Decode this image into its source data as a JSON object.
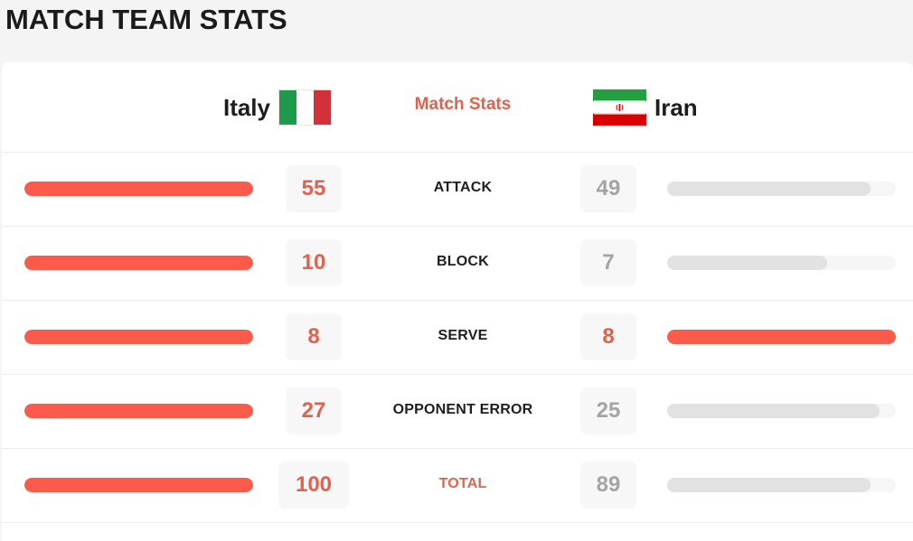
{
  "page": {
    "title": "MATCH TEAM STATS"
  },
  "header": {
    "home_team": "Italy",
    "center_title": "Match Stats",
    "away_team": "Iran"
  },
  "colors": {
    "leader": "#fa5b4a",
    "trailer": "#e2e2e2",
    "accent_text": "#e2614c",
    "muted_text": "#a4a4a4"
  },
  "stats": [
    {
      "label": "ATTACK",
      "home": "55",
      "away": "49",
      "home_bar_fraction": 1.0,
      "away_bar_fraction": 0.89
    },
    {
      "label": "BLOCK",
      "home": "10",
      "away": "7",
      "home_bar_fraction": 1.0,
      "away_bar_fraction": 0.7
    },
    {
      "label": "SERVE",
      "home": "8",
      "away": "8",
      "home_bar_fraction": 1.0,
      "away_bar_fraction": 1.0
    },
    {
      "label": "OPPONENT ERROR",
      "home": "27",
      "away": "25",
      "home_bar_fraction": 1.0,
      "away_bar_fraction": 0.93
    },
    {
      "label": "TOTAL",
      "home": "100",
      "away": "89",
      "home_bar_fraction": 1.0,
      "away_bar_fraction": 0.89
    }
  ]
}
